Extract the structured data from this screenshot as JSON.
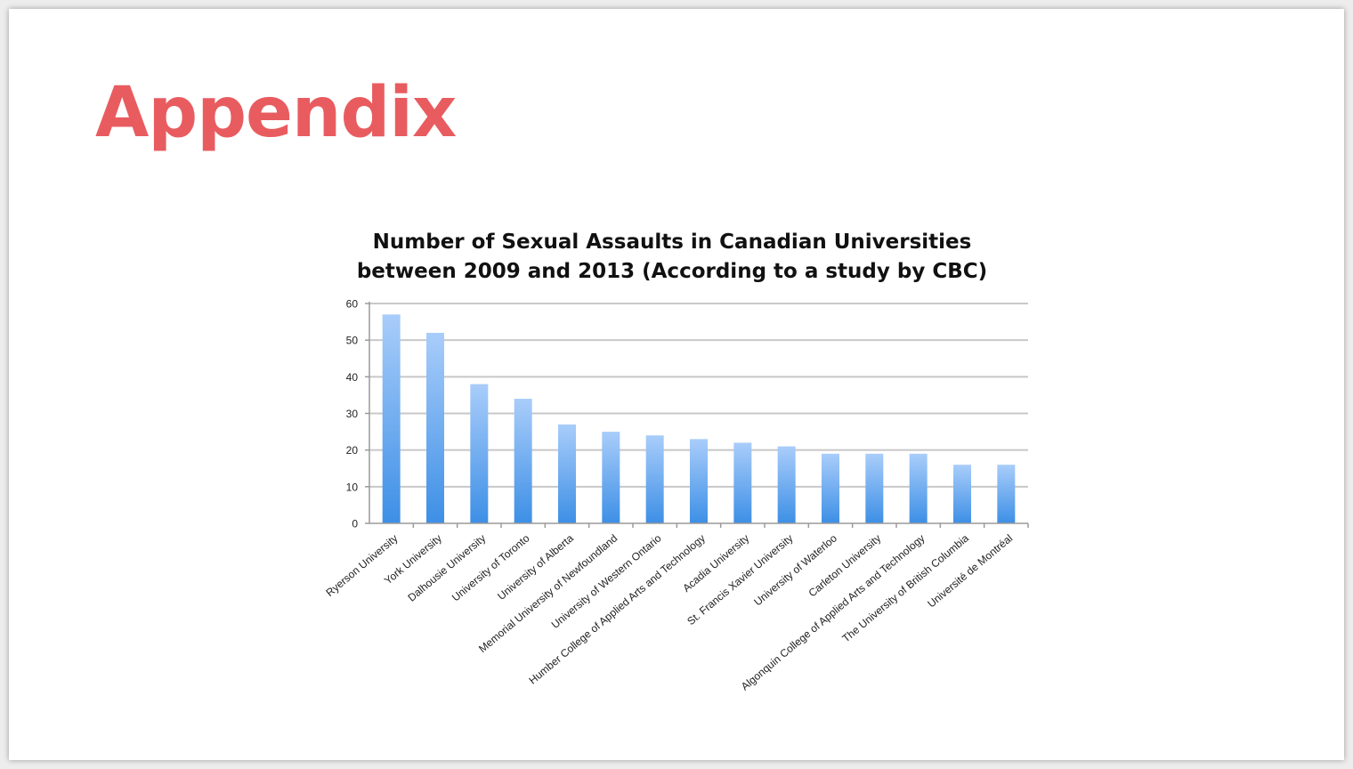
{
  "slide": {
    "title": "Appendix",
    "title_color": "#e85c60"
  },
  "chart_data": {
    "type": "bar",
    "title": "Number of Sexual Assaults in Canadian Universities between 2009 and 2013 (According to a study by CBC)",
    "title_lines": [
      "Number of Sexual Assaults in Canadian Universities",
      "between 2009 and 2013 (According to a study by CBC)"
    ],
    "xlabel": "",
    "ylabel": "",
    "ylim": [
      0,
      60
    ],
    "yticks": [
      0,
      10,
      20,
      30,
      40,
      50,
      60
    ],
    "grid": true,
    "legend": "none",
    "bar_color_top": "#a9cdfa",
    "bar_color_bottom": "#3d8fe6",
    "categories": [
      "Ryerson University",
      "York University",
      "Dalhousie University",
      "University of Toronto",
      "University of Alberta",
      "Memorial University of Newfoundland",
      "University of Western Ontario",
      "Humber College of Applied Arts and Technology",
      "Acadia University",
      "St. Francis Xavier University",
      "University of Waterloo",
      "Carleton University",
      "Algonquin College of Applied Arts and Technology",
      "The University of British Columbia",
      "Université de Montréal"
    ],
    "values": [
      57,
      52,
      38,
      34,
      27,
      25,
      24,
      23,
      22,
      21,
      19,
      19,
      19,
      16,
      16
    ]
  }
}
